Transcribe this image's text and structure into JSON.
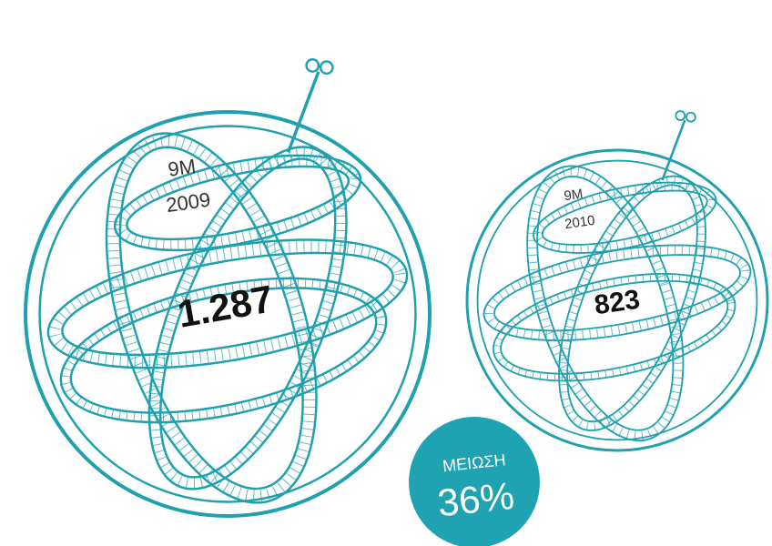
{
  "spheres": [
    {
      "period": "9M",
      "year": "2009",
      "value": "1.287"
    },
    {
      "period": "9M",
      "year": "2010",
      "value": "823"
    }
  ],
  "badge": {
    "label": "ΜΕΙΩΣΗ",
    "value": "36%"
  }
}
